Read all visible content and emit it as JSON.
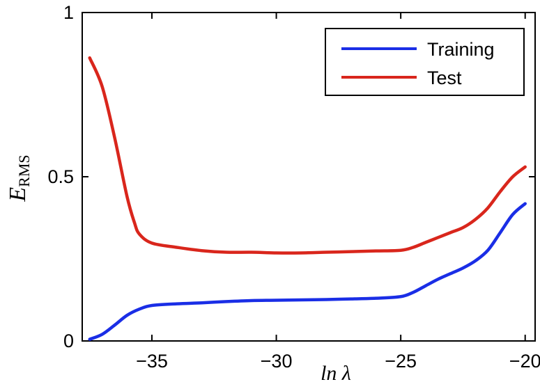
{
  "chart_data": {
    "type": "line",
    "title": "",
    "xlabel": "ln λ",
    "ylabel": "E",
    "ylabel_subscript": "RMS",
    "xlim": [
      -37.8,
      -19.6
    ],
    "ylim": [
      0,
      1
    ],
    "xticks": [
      -35,
      -30,
      -25,
      -20
    ],
    "xtick_labels": [
      "−35",
      "−30",
      "−25",
      "−20"
    ],
    "yticks": [
      0,
      0.5,
      1
    ],
    "ytick_labels": [
      "0",
      "0.5",
      "1"
    ],
    "grid": false,
    "legend_position": "top-right",
    "series": [
      {
        "name": "Training",
        "color": "#1a2ee6",
        "x": [
          -37.5,
          -37.0,
          -36.5,
          -36.0,
          -35.5,
          -35.0,
          -34.0,
          -33.0,
          -32.0,
          -31.0,
          -30.0,
          -29.0,
          -28.0,
          -27.0,
          -26.0,
          -25.0,
          -24.5,
          -24.0,
          -23.5,
          -23.0,
          -22.5,
          -22.0,
          -21.5,
          -21.0,
          -20.5,
          -20.0
        ],
        "y": [
          0.005,
          0.02,
          0.048,
          0.078,
          0.097,
          0.108,
          0.113,
          0.116,
          0.12,
          0.123,
          0.124,
          0.125,
          0.126,
          0.128,
          0.13,
          0.135,
          0.148,
          0.168,
          0.188,
          0.205,
          0.222,
          0.244,
          0.276,
          0.33,
          0.385,
          0.418
        ]
      },
      {
        "name": "Test",
        "color": "#d9261c",
        "x": [
          -37.5,
          -37.0,
          -36.5,
          -36.0,
          -35.7,
          -35.5,
          -35.0,
          -34.0,
          -33.0,
          -32.0,
          -31.0,
          -30.0,
          -29.0,
          -28.0,
          -27.0,
          -26.0,
          -25.0,
          -24.5,
          -24.0,
          -23.5,
          -23.0,
          -22.5,
          -22.0,
          -21.5,
          -21.0,
          -20.5,
          -20.0
        ],
        "y": [
          0.862,
          0.775,
          0.62,
          0.44,
          0.36,
          0.325,
          0.298,
          0.285,
          0.275,
          0.27,
          0.27,
          0.268,
          0.268,
          0.27,
          0.272,
          0.274,
          0.276,
          0.285,
          0.3,
          0.315,
          0.33,
          0.345,
          0.37,
          0.405,
          0.455,
          0.5,
          0.53
        ]
      }
    ]
  }
}
